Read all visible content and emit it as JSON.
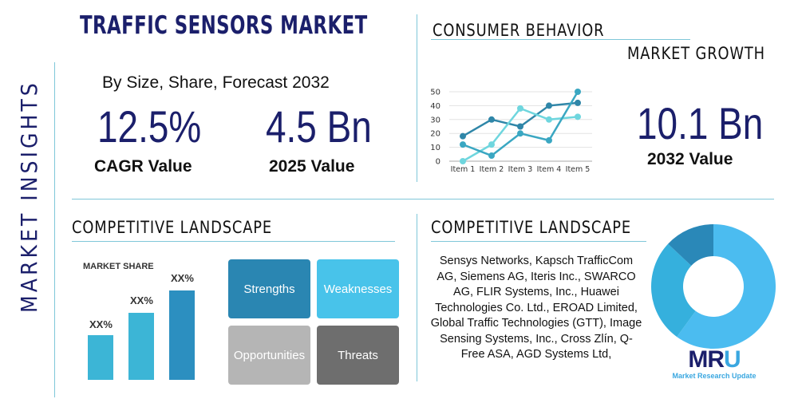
{
  "side_label": "MARKET INSIGHTS",
  "title": "TRAFFIC SENSORS MARKET",
  "subtitle": "By Size, Share, Forecast 2032",
  "cagr": {
    "value": "12.5%",
    "label": "CAGR Value"
  },
  "value_2025": {
    "value": "4.5 Bn",
    "label": "2025 Value"
  },
  "consumer": {
    "title": "CONSUMER BEHAVIOR",
    "subtitle": "MARKET GROWTH"
  },
  "value_2032": {
    "value": "10.1 Bn",
    "label": "2032 Value"
  },
  "competitive_left": {
    "title": "COMPETITIVE LANDSCAPE",
    "market_share": "MARKET SHARE",
    "bar_labels": [
      "XX%",
      "XX%",
      "XX%"
    ]
  },
  "swot": {
    "strengths": "Strengths",
    "weaknesses": "Weaknesses",
    "opportunities": "Opportunities",
    "threats": "Threats"
  },
  "competitive_right": {
    "title": "COMPETITIVE LANDSCAPE",
    "companies": "Sensys Networks, Kapsch TrafficCom AG, Siemens AG, Iteris Inc., SWARCO AG, FLIR Systems, Inc., Huawei Technologies Co. Ltd., EROAD Limited, Global Traffic Technologies (GTT), Image Sensing Systems, Inc., Cross Zlín, Q-Free ASA, AGD Systems Ltd,"
  },
  "logo": {
    "mark": "MRU",
    "text": "Market Research Update"
  },
  "chart_data": [
    {
      "type": "line",
      "categories": [
        "Item 1",
        "Item 2",
        "Item 3",
        "Item 4",
        "Item 5"
      ],
      "ylim": [
        0,
        50
      ],
      "yticks": [
        0,
        10,
        20,
        30,
        40,
        50
      ],
      "grid": true,
      "series": [
        {
          "values": [
            18,
            30,
            25,
            40,
            42
          ],
          "color": "#2f86a8"
        },
        {
          "values": [
            0,
            12,
            38,
            30,
            32
          ],
          "color": "#6fd6de"
        },
        {
          "values": [
            12,
            4,
            20,
            15,
            50
          ],
          "color": "#3aa7c2"
        }
      ]
    },
    {
      "type": "pie",
      "values": [
        60,
        27,
        13
      ],
      "colors": [
        "#4bbcf0",
        "#35b0dd",
        "#2a88b8"
      ]
    }
  ]
}
